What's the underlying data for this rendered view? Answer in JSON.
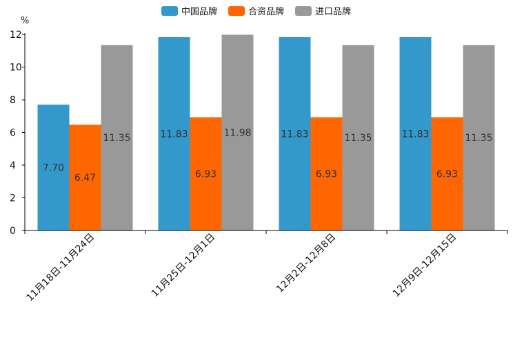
{
  "chart_data": {
    "type": "bar",
    "title": "",
    "xlabel": "",
    "ylabel": "%",
    "ylim": [
      0,
      12
    ],
    "yticks": [
      0,
      2,
      4,
      6,
      8,
      10,
      12
    ],
    "grid": false,
    "legend_position": "top-center",
    "categories": [
      "11月18日-11月24日",
      "11月25日-12月1日",
      "12月2日-12月8日",
      "12月9日-12月15日"
    ],
    "series": [
      {
        "name": "中国品牌",
        "color": "#3399cc",
        "values": [
          7.7,
          11.83,
          11.83,
          11.83
        ],
        "labels": [
          "7.70",
          "11.83",
          "11.83",
          "11.83"
        ]
      },
      {
        "name": "合资品牌",
        "color": "#ff6600",
        "values": [
          6.47,
          6.93,
          6.93,
          6.93
        ],
        "labels": [
          "6.47",
          "6.93",
          "6.93",
          "6.93"
        ]
      },
      {
        "name": "进口品牌",
        "color": "#999999",
        "values": [
          11.35,
          11.98,
          11.35,
          11.35
        ],
        "labels": [
          "11.35",
          "11.98",
          "11.35",
          "11.35"
        ]
      }
    ]
  }
}
